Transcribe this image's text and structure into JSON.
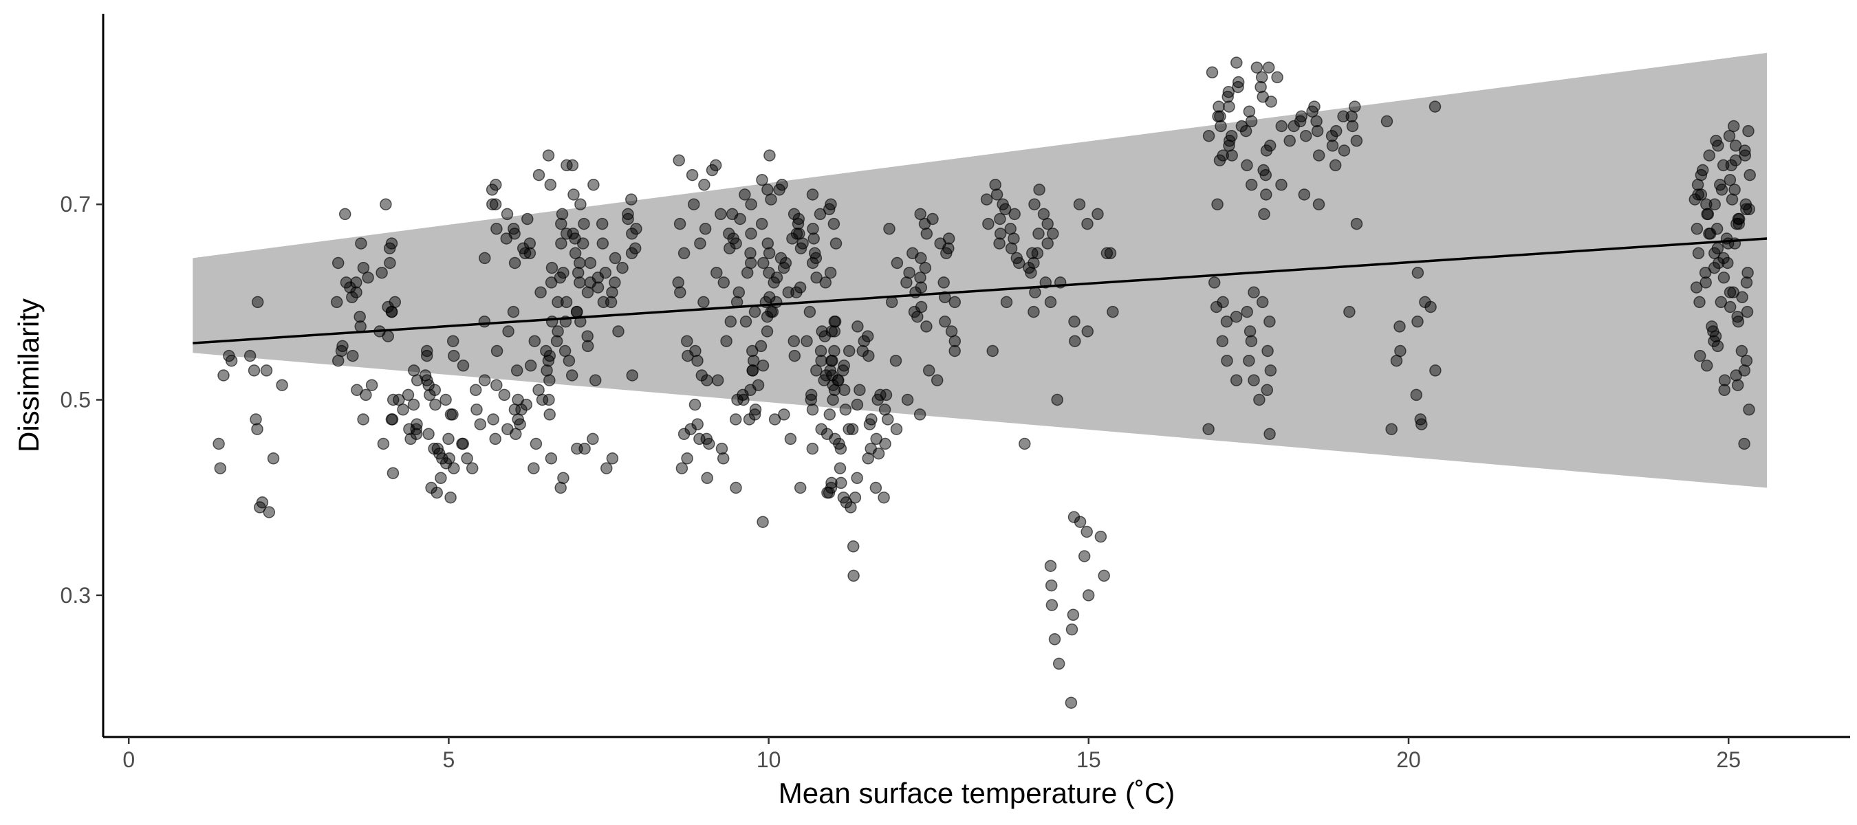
{
  "chart_data": {
    "type": "scatter",
    "title": "",
    "xlabel": "Mean surface temperature (˚C)",
    "ylabel": "Dissimilarity",
    "xlim": [
      -0.4,
      26.9
    ],
    "ylim": [
      0.155,
      0.895
    ],
    "x_ticks": [
      0,
      5,
      10,
      15,
      20,
      25
    ],
    "y_ticks": [
      0.3,
      0.5,
      0.7
    ],
    "x_tick_labels": [
      "0",
      "5",
      "10",
      "15",
      "20",
      "25"
    ],
    "y_tick_labels": [
      "0.3",
      "0.5",
      "0.7"
    ],
    "grid": false,
    "legend": "none",
    "colors": {
      "points": "#000000",
      "point_opacity": 0.45,
      "ribbon": "#bebebe",
      "line": "#000000"
    },
    "fit": {
      "type": "linear",
      "x_range": [
        1.0,
        25.6
      ],
      "y_at_start": 0.558,
      "y_at_end": 0.665,
      "ci_at_start": [
        0.548,
        0.645
      ],
      "ci_at_end": [
        0.41,
        0.855
      ]
    },
    "clusters": [
      {
        "x_center": 1.8,
        "x_spread": 0.6,
        "n": 16,
        "y_values": [
          0.48,
          0.545,
          0.53,
          0.515,
          0.6,
          0.47,
          0.455,
          0.44,
          0.39,
          0.385,
          0.395,
          0.54,
          0.53,
          0.43,
          0.545,
          0.525
        ]
      },
      {
        "x_center": 3.7,
        "x_spread": 0.55,
        "n": 34,
        "y_values": [
          0.69,
          0.7,
          0.66,
          0.655,
          0.64,
          0.635,
          0.63,
          0.62,
          0.615,
          0.61,
          0.6,
          0.59,
          0.585,
          0.575,
          0.565,
          0.555,
          0.55,
          0.545,
          0.51,
          0.505,
          0.5,
          0.48,
          0.455,
          0.62,
          0.66,
          0.59,
          0.595,
          0.605,
          0.625,
          0.64,
          0.57,
          0.54,
          0.515,
          0.6
        ]
      },
      {
        "x_center": 4.8,
        "x_spread": 0.7,
        "n": 48,
        "y_values": [
          0.56,
          0.55,
          0.545,
          0.53,
          0.525,
          0.52,
          0.515,
          0.51,
          0.505,
          0.5,
          0.495,
          0.49,
          0.485,
          0.48,
          0.475,
          0.47,
          0.465,
          0.46,
          0.455,
          0.45,
          0.445,
          0.44,
          0.435,
          0.43,
          0.425,
          0.42,
          0.41,
          0.405,
          0.4,
          0.52,
          0.51,
          0.49,
          0.47,
          0.45,
          0.43,
          0.5,
          0.48,
          0.46,
          0.44,
          0.545,
          0.535,
          0.485,
          0.465,
          0.455,
          0.475,
          0.495,
          0.505,
          0.44
        ]
      },
      {
        "x_center": 6.3,
        "x_spread": 0.75,
        "n": 70,
        "y_values": [
          0.75,
          0.74,
          0.73,
          0.72,
          0.715,
          0.71,
          0.7,
          0.69,
          0.685,
          0.68,
          0.675,
          0.67,
          0.665,
          0.66,
          0.655,
          0.65,
          0.645,
          0.64,
          0.635,
          0.63,
          0.625,
          0.62,
          0.61,
          0.6,
          0.59,
          0.58,
          0.57,
          0.56,
          0.55,
          0.545,
          0.54,
          0.535,
          0.53,
          0.525,
          0.52,
          0.515,
          0.51,
          0.505,
          0.5,
          0.495,
          0.49,
          0.485,
          0.48,
          0.475,
          0.47,
          0.465,
          0.46,
          0.455,
          0.45,
          0.44,
          0.43,
          0.42,
          0.41,
          0.67,
          0.66,
          0.65,
          0.55,
          0.54,
          0.53,
          0.52,
          0.5,
          0.49,
          0.48,
          0.675,
          0.7,
          0.72,
          0.6,
          0.58,
          0.62,
          0.5
        ]
      },
      {
        "x_center": 7.3,
        "x_spread": 0.65,
        "n": 48,
        "y_values": [
          0.74,
          0.72,
          0.705,
          0.7,
          0.69,
          0.685,
          0.68,
          0.675,
          0.67,
          0.665,
          0.66,
          0.655,
          0.65,
          0.645,
          0.64,
          0.635,
          0.63,
          0.625,
          0.62,
          0.615,
          0.61,
          0.6,
          0.59,
          0.58,
          0.57,
          0.56,
          0.55,
          0.52,
          0.46,
          0.45,
          0.44,
          0.43,
          0.68,
          0.66,
          0.64,
          0.62,
          0.6,
          0.58,
          0.67,
          0.65,
          0.63,
          0.61,
          0.69,
          0.59,
          0.57,
          0.555,
          0.565,
          0.525
        ]
      },
      {
        "x_center": 9.3,
        "x_spread": 0.75,
        "n": 78,
        "y_values": [
          0.75,
          0.745,
          0.74,
          0.735,
          0.73,
          0.725,
          0.72,
          0.715,
          0.71,
          0.705,
          0.7,
          0.69,
          0.685,
          0.68,
          0.675,
          0.67,
          0.665,
          0.66,
          0.655,
          0.65,
          0.64,
          0.63,
          0.62,
          0.61,
          0.6,
          0.59,
          0.58,
          0.57,
          0.56,
          0.555,
          0.55,
          0.545,
          0.54,
          0.535,
          0.53,
          0.525,
          0.52,
          0.515,
          0.51,
          0.505,
          0.5,
          0.495,
          0.49,
          0.485,
          0.48,
          0.475,
          0.47,
          0.465,
          0.46,
          0.455,
          0.45,
          0.44,
          0.43,
          0.42,
          0.41,
          0.375,
          0.7,
          0.68,
          0.66,
          0.64,
          0.62,
          0.6,
          0.58,
          0.56,
          0.54,
          0.52,
          0.5,
          0.48,
          0.46,
          0.44,
          0.69,
          0.67,
          0.65,
          0.63,
          0.61,
          0.59,
          0.55,
          0.53
        ]
      },
      {
        "x_center": 10.5,
        "x_spread": 0.55,
        "n": 64,
        "y_values": [
          0.72,
          0.715,
          0.71,
          0.7,
          0.69,
          0.685,
          0.68,
          0.675,
          0.67,
          0.665,
          0.66,
          0.655,
          0.65,
          0.645,
          0.64,
          0.635,
          0.63,
          0.625,
          0.62,
          0.615,
          0.61,
          0.6,
          0.59,
          0.58,
          0.57,
          0.56,
          0.55,
          0.54,
          0.53,
          0.52,
          0.51,
          0.5,
          0.49,
          0.48,
          0.47,
          0.46,
          0.45,
          0.41,
          0.695,
          0.68,
          0.66,
          0.64,
          0.62,
          0.6,
          0.58,
          0.56,
          0.67,
          0.65,
          0.63,
          0.61,
          0.59,
          0.57,
          0.55,
          0.69,
          0.665,
          0.645,
          0.625,
          0.605,
          0.585,
          0.565,
          0.545,
          0.525,
          0.505,
          0.485
        ]
      },
      {
        "x_center": 11.4,
        "x_spread": 0.5,
        "n": 56,
        "y_values": [
          0.66,
          0.57,
          0.56,
          0.55,
          0.545,
          0.54,
          0.535,
          0.53,
          0.525,
          0.52,
          0.515,
          0.51,
          0.505,
          0.5,
          0.495,
          0.49,
          0.485,
          0.48,
          0.475,
          0.47,
          0.465,
          0.46,
          0.455,
          0.45,
          0.445,
          0.44,
          0.43,
          0.42,
          0.415,
          0.41,
          0.405,
          0.4,
          0.395,
          0.39,
          0.35,
          0.32,
          0.41,
          0.405,
          0.4,
          0.415,
          0.51,
          0.505,
          0.5,
          0.52,
          0.53,
          0.45,
          0.455,
          0.46,
          0.47,
          0.48,
          0.49,
          0.54,
          0.55,
          0.565,
          0.575,
          0.4
        ]
      },
      {
        "x_center": 12.4,
        "x_spread": 0.55,
        "n": 36,
        "y_values": [
          0.69,
          0.685,
          0.68,
          0.675,
          0.67,
          0.665,
          0.66,
          0.655,
          0.65,
          0.645,
          0.64,
          0.635,
          0.63,
          0.625,
          0.62,
          0.615,
          0.61,
          0.605,
          0.6,
          0.595,
          0.59,
          0.585,
          0.58,
          0.575,
          0.57,
          0.56,
          0.55,
          0.54,
          0.53,
          0.52,
          0.5,
          0.485,
          0.47,
          0.65,
          0.62,
          0.6
        ]
      },
      {
        "x_center": 13.9,
        "x_spread": 0.5,
        "n": 32,
        "y_values": [
          0.72,
          0.715,
          0.71,
          0.705,
          0.7,
          0.695,
          0.69,
          0.685,
          0.68,
          0.675,
          0.67,
          0.665,
          0.66,
          0.655,
          0.65,
          0.645,
          0.64,
          0.635,
          0.63,
          0.62,
          0.61,
          0.6,
          0.59,
          0.55,
          0.455,
          0.7,
          0.69,
          0.68,
          0.66,
          0.64,
          0.65,
          0.67
        ]
      },
      {
        "x_center": 14.9,
        "x_spread": 0.5,
        "n": 28,
        "y_values": [
          0.7,
          0.69,
          0.68,
          0.67,
          0.65,
          0.62,
          0.6,
          0.58,
          0.56,
          0.5,
          0.38,
          0.375,
          0.365,
          0.36,
          0.34,
          0.33,
          0.32,
          0.31,
          0.3,
          0.29,
          0.28,
          0.265,
          0.255,
          0.23,
          0.19,
          0.59,
          0.57,
          0.65
        ]
      },
      {
        "x_center": 17.4,
        "x_spread": 0.55,
        "n": 60,
        "y_values": [
          0.845,
          0.84,
          0.835,
          0.83,
          0.825,
          0.82,
          0.815,
          0.81,
          0.805,
          0.8,
          0.795,
          0.79,
          0.785,
          0.78,
          0.775,
          0.77,
          0.765,
          0.76,
          0.755,
          0.75,
          0.745,
          0.74,
          0.735,
          0.73,
          0.72,
          0.71,
          0.7,
          0.69,
          0.62,
          0.61,
          0.6,
          0.595,
          0.59,
          0.585,
          0.58,
          0.57,
          0.56,
          0.55,
          0.54,
          0.53,
          0.52,
          0.51,
          0.5,
          0.47,
          0.465,
          0.83,
          0.82,
          0.81,
          0.8,
          0.79,
          0.78,
          0.77,
          0.76,
          0.75,
          0.84,
          0.6,
          0.58,
          0.56,
          0.54,
          0.52
        ]
      },
      {
        "x_center": 18.6,
        "x_spread": 0.6,
        "n": 26,
        "y_values": [
          0.8,
          0.795,
          0.79,
          0.785,
          0.78,
          0.775,
          0.77,
          0.765,
          0.76,
          0.755,
          0.75,
          0.74,
          0.72,
          0.71,
          0.7,
          0.68,
          0.59,
          0.79,
          0.78,
          0.77,
          0.785,
          0.775,
          0.765,
          0.8,
          0.79,
          0.78
        ]
      },
      {
        "x_center": 20.0,
        "x_spread": 0.45,
        "n": 14,
        "y_values": [
          0.8,
          0.785,
          0.63,
          0.6,
          0.595,
          0.58,
          0.55,
          0.54,
          0.53,
          0.505,
          0.48,
          0.475,
          0.47,
          0.575
        ]
      },
      {
        "x_center": 24.9,
        "x_spread": 0.45,
        "n": 80,
        "y_values": [
          0.78,
          0.775,
          0.77,
          0.765,
          0.76,
          0.755,
          0.75,
          0.745,
          0.74,
          0.735,
          0.73,
          0.725,
          0.72,
          0.715,
          0.71,
          0.705,
          0.7,
          0.695,
          0.69,
          0.685,
          0.68,
          0.675,
          0.67,
          0.665,
          0.66,
          0.655,
          0.65,
          0.645,
          0.64,
          0.635,
          0.63,
          0.625,
          0.62,
          0.615,
          0.61,
          0.605,
          0.6,
          0.595,
          0.59,
          0.585,
          0.58,
          0.575,
          0.57,
          0.565,
          0.56,
          0.555,
          0.55,
          0.545,
          0.54,
          0.535,
          0.53,
          0.525,
          0.52,
          0.515,
          0.51,
          0.49,
          0.455,
          0.7,
          0.69,
          0.71,
          0.72,
          0.73,
          0.68,
          0.67,
          0.66,
          0.65,
          0.74,
          0.75,
          0.76,
          0.64,
          0.63,
          0.62,
          0.61,
          0.6,
          0.7,
          0.705,
          0.695,
          0.715,
          0.685,
          0.675
        ]
      }
    ]
  }
}
